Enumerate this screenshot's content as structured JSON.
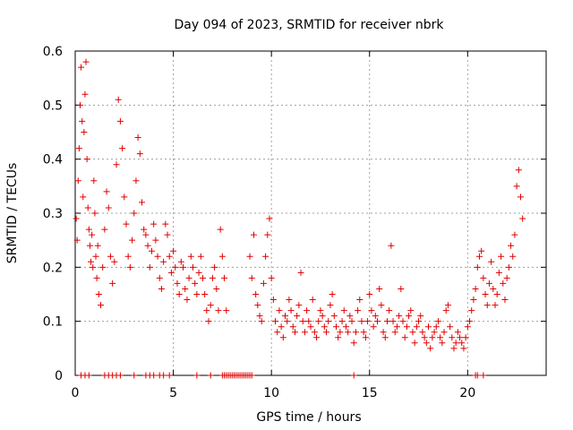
{
  "chart_data": {
    "type": "scatter",
    "title": "Day 094 of 2023, SRMTID for receiver nbrk",
    "xlabel": "GPS time / hours",
    "ylabel": "SRMTID / TECUs",
    "xlim": [
      0,
      24
    ],
    "ylim": [
      0,
      0.6
    ],
    "xticks": [
      0,
      5,
      10,
      15,
      20
    ],
    "xtick_labels": [
      "0",
      "5",
      "10",
      "15",
      "20"
    ],
    "yticks": [
      0,
      0.1,
      0.2,
      0.3,
      0.4,
      0.5,
      0.6
    ],
    "ytick_labels": [
      "0",
      "0.1",
      "0.2",
      "0.3",
      "0.4",
      "0.5",
      "0.6"
    ],
    "grid": true,
    "marker": "+",
    "color": "#e00000",
    "series": [
      {
        "name": "SRMTID",
        "x": [
          0.05,
          0.1,
          0.15,
          0.2,
          0.25,
          0.3,
          0.35,
          0.4,
          0.45,
          0.5,
          0.55,
          0.6,
          0.65,
          0.7,
          0.75,
          0.8,
          0.85,
          0.9,
          0.95,
          1.0,
          1.05,
          1.1,
          1.15,
          1.2,
          1.3,
          1.4,
          1.5,
          1.6,
          1.7,
          1.8,
          1.9,
          2.0,
          2.1,
          2.2,
          2.3,
          2.4,
          2.5,
          2.6,
          2.7,
          2.8,
          2.9,
          3.0,
          3.1,
          3.2,
          3.3,
          3.4,
          3.5,
          3.6,
          3.7,
          3.8,
          3.9,
          4.0,
          4.1,
          4.2,
          4.3,
          4.4,
          4.5,
          4.6,
          4.7,
          4.8,
          4.9,
          5.0,
          5.1,
          5.2,
          5.3,
          5.4,
          5.5,
          5.6,
          5.7,
          5.8,
          5.9,
          6.0,
          6.1,
          6.2,
          6.3,
          6.4,
          6.5,
          6.6,
          6.7,
          6.8,
          6.9,
          7.0,
          7.1,
          7.2,
          7.3,
          7.4,
          7.5,
          7.6,
          7.7,
          8.9,
          9.0,
          9.1,
          9.2,
          9.3,
          9.4,
          9.5,
          9.6,
          9.7,
          9.8,
          9.9,
          10.0,
          10.1,
          10.2,
          10.3,
          10.4,
          10.5,
          10.6,
          10.7,
          10.8,
          10.9,
          11.0,
          11.1,
          11.2,
          11.3,
          11.4,
          11.5,
          11.6,
          11.7,
          11.8,
          11.9,
          12.0,
          12.1,
          12.2,
          12.3,
          12.4,
          12.5,
          12.6,
          12.7,
          12.8,
          12.9,
          13.0,
          13.1,
          13.2,
          13.3,
          13.4,
          13.5,
          13.6,
          13.7,
          13.8,
          13.9,
          14.0,
          14.1,
          14.2,
          14.3,
          14.4,
          14.5,
          14.6,
          14.7,
          14.8,
          14.9,
          15.0,
          15.1,
          15.2,
          15.3,
          15.4,
          15.5,
          15.6,
          15.7,
          15.8,
          15.9,
          16.0,
          16.1,
          16.2,
          16.3,
          16.4,
          16.5,
          16.6,
          16.7,
          16.8,
          16.9,
          17.0,
          17.1,
          17.2,
          17.3,
          17.4,
          17.5,
          17.6,
          17.7,
          17.8,
          17.9,
          18.0,
          18.1,
          18.2,
          18.3,
          18.4,
          18.5,
          18.6,
          18.7,
          18.8,
          18.9,
          19.0,
          19.1,
          19.2,
          19.3,
          19.4,
          19.5,
          19.6,
          19.7,
          19.8,
          19.9,
          20.0,
          20.1,
          20.2,
          20.3,
          20.4,
          20.5,
          20.6,
          20.7,
          20.8,
          20.9,
          21.0,
          21.1,
          21.2,
          21.3,
          21.4,
          21.5,
          21.6,
          21.7,
          21.8,
          21.9,
          22.0,
          22.1,
          22.2,
          22.3,
          22.4,
          22.5,
          22.6,
          22.7,
          22.8
        ],
        "y": [
          0.29,
          0.25,
          0.36,
          0.42,
          0.5,
          0.57,
          0.47,
          0.33,
          0.45,
          0.52,
          0.58,
          0.4,
          0.31,
          0.27,
          0.24,
          0.21,
          0.26,
          0.2,
          0.36,
          0.3,
          0.22,
          0.18,
          0.24,
          0.15,
          0.13,
          0.2,
          0.27,
          0.34,
          0.31,
          0.22,
          0.17,
          0.21,
          0.39,
          0.51,
          0.47,
          0.42,
          0.33,
          0.28,
          0.22,
          0.2,
          0.25,
          0.3,
          0.36,
          0.44,
          0.41,
          0.32,
          0.27,
          0.26,
          0.24,
          0.2,
          0.23,
          0.28,
          0.25,
          0.22,
          0.18,
          0.16,
          0.21,
          0.28,
          0.26,
          0.22,
          0.19,
          0.23,
          0.2,
          0.17,
          0.15,
          0.21,
          0.2,
          0.16,
          0.14,
          0.18,
          0.22,
          0.2,
          0.17,
          0.15,
          0.19,
          0.22,
          0.18,
          0.15,
          0.12,
          0.1,
          0.13,
          0.18,
          0.2,
          0.16,
          0.12,
          0.27,
          0.22,
          0.18,
          0.12,
          0.22,
          0.18,
          0.26,
          0.15,
          0.13,
          0.11,
          0.1,
          0.17,
          0.22,
          0.26,
          0.29,
          0.18,
          0.14,
          0.1,
          0.08,
          0.12,
          0.09,
          0.07,
          0.11,
          0.1,
          0.14,
          0.12,
          0.09,
          0.08,
          0.11,
          0.13,
          0.19,
          0.1,
          0.08,
          0.12,
          0.1,
          0.09,
          0.14,
          0.08,
          0.07,
          0.1,
          0.12,
          0.11,
          0.09,
          0.08,
          0.1,
          0.13,
          0.15,
          0.11,
          0.09,
          0.07,
          0.08,
          0.1,
          0.12,
          0.09,
          0.08,
          0.11,
          0.1,
          0.06,
          0.08,
          0.12,
          0.14,
          0.1,
          0.08,
          0.07,
          0.1,
          0.15,
          0.12,
          0.09,
          0.11,
          0.1,
          0.16,
          0.13,
          0.08,
          0.07,
          0.1,
          0.12,
          0.24,
          0.1,
          0.08,
          0.09,
          0.11,
          0.16,
          0.1,
          0.07,
          0.09,
          0.11,
          0.12,
          0.08,
          0.06,
          0.09,
          0.1,
          0.11,
          0.08,
          0.07,
          0.06,
          0.09,
          0.05,
          0.07,
          0.08,
          0.09,
          0.1,
          0.07,
          0.06,
          0.08,
          0.12,
          0.13,
          0.09,
          0.07,
          0.05,
          0.06,
          0.08,
          0.07,
          0.06,
          0.05,
          0.07,
          0.09,
          0.1,
          0.12,
          0.14,
          0.16,
          0.2,
          0.22,
          0.23,
          0.18,
          0.15,
          0.13,
          0.17,
          0.21,
          0.16,
          0.13,
          0.15,
          0.19,
          0.22,
          0.17,
          0.14,
          0.18,
          0.2,
          0.24,
          0.22,
          0.26,
          0.35,
          0.38,
          0.33,
          0.29
        ],
        "zero_x": [
          0.3,
          0.5,
          0.7,
          1.5,
          1.7,
          1.9,
          2.1,
          2.3,
          3.0,
          3.6,
          3.8,
          4.0,
          4.3,
          4.5,
          4.8,
          6.2,
          6.9,
          7.5,
          7.6,
          7.7,
          7.8,
          7.9,
          8.0,
          8.1,
          8.2,
          8.3,
          8.4,
          8.5,
          8.6,
          8.7,
          8.8,
          8.9,
          9.0,
          14.2,
          20.4,
          20.5,
          20.8
        ]
      }
    ]
  }
}
